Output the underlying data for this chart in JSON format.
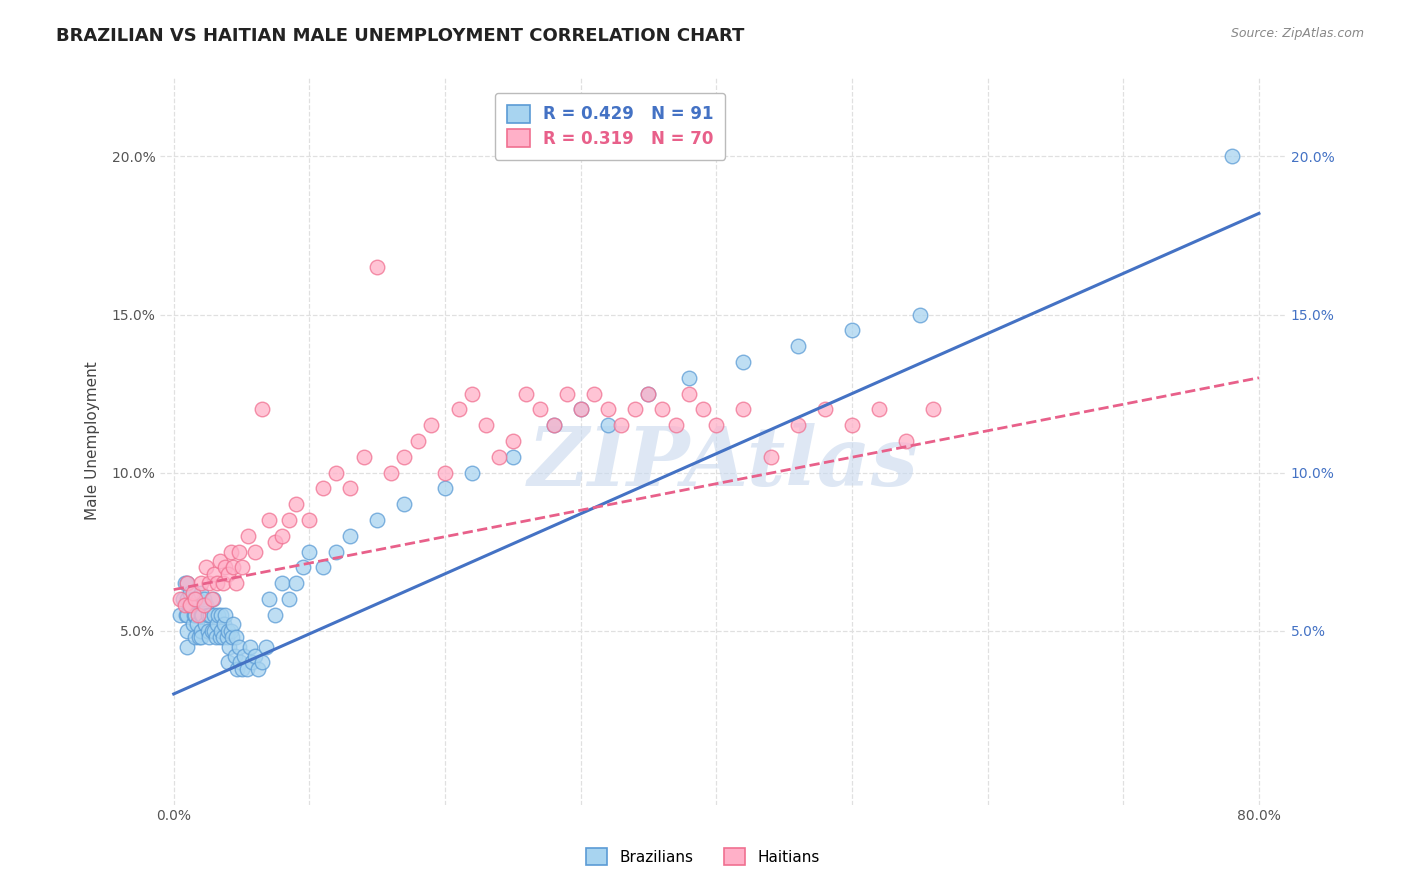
{
  "title": "BRAZILIAN VS HAITIAN MALE UNEMPLOYMENT CORRELATION CHART",
  "source_text": "Source: ZipAtlas.com",
  "ylabel": "Male Unemployment",
  "xlim": [
    -0.01,
    0.82
  ],
  "ylim": [
    -0.005,
    0.225
  ],
  "xticks": [
    0.0,
    0.1,
    0.2,
    0.3,
    0.4,
    0.5,
    0.6,
    0.7,
    0.8
  ],
  "xticklabels": [
    "0.0%",
    "",
    "",
    "",
    "",
    "",
    "",
    "",
    "80.0%"
  ],
  "yticks": [
    0.05,
    0.1,
    0.15,
    0.2
  ],
  "yticklabels_left": [
    "5.0%",
    "10.0%",
    "15.0%",
    "20.0%"
  ],
  "yticklabels_right": [
    "5.0%",
    "10.0%",
    "15.0%",
    "20.0%"
  ],
  "brazil_color": "#A8D4F0",
  "haiti_color": "#FFB0C8",
  "brazil_edge_color": "#5B9BD5",
  "haiti_edge_color": "#F07090",
  "brazil_line_color": "#4472C4",
  "haiti_line_color": "#E8608A",
  "brazil_R": 0.429,
  "brazil_N": 91,
  "haiti_R": 0.319,
  "haiti_N": 70,
  "brazil_trend_x": [
    0.0,
    0.8
  ],
  "brazil_trend_y": [
    0.03,
    0.182
  ],
  "haiti_trend_x": [
    0.0,
    0.8
  ],
  "haiti_trend_y": [
    0.063,
    0.13
  ],
  "watermark": "ZIPAtlas",
  "watermark_color": "#C8D8EE",
  "grid_color": "#E0E0E0",
  "brazil_points_x": [
    0.005,
    0.007,
    0.008,
    0.009,
    0.01,
    0.01,
    0.01,
    0.01,
    0.01,
    0.011,
    0.012,
    0.013,
    0.014,
    0.015,
    0.015,
    0.016,
    0.016,
    0.017,
    0.018,
    0.019,
    0.02,
    0.02,
    0.02,
    0.02,
    0.021,
    0.022,
    0.023,
    0.024,
    0.025,
    0.025,
    0.026,
    0.027,
    0.028,
    0.029,
    0.03,
    0.03,
    0.031,
    0.032,
    0.033,
    0.034,
    0.035,
    0.035,
    0.036,
    0.037,
    0.038,
    0.039,
    0.04,
    0.04,
    0.041,
    0.042,
    0.043,
    0.044,
    0.045,
    0.046,
    0.047,
    0.048,
    0.049,
    0.05,
    0.052,
    0.054,
    0.056,
    0.058,
    0.06,
    0.062,
    0.065,
    0.068,
    0.07,
    0.075,
    0.08,
    0.085,
    0.09,
    0.095,
    0.1,
    0.11,
    0.12,
    0.13,
    0.15,
    0.17,
    0.2,
    0.22,
    0.25,
    0.28,
    0.3,
    0.32,
    0.35,
    0.38,
    0.42,
    0.46,
    0.5,
    0.55,
    0.78
  ],
  "brazil_points_y": [
    0.055,
    0.06,
    0.065,
    0.055,
    0.06,
    0.065,
    0.055,
    0.05,
    0.045,
    0.058,
    0.062,
    0.058,
    0.052,
    0.06,
    0.055,
    0.048,
    0.055,
    0.052,
    0.06,
    0.048,
    0.055,
    0.05,
    0.062,
    0.048,
    0.055,
    0.06,
    0.052,
    0.058,
    0.05,
    0.055,
    0.048,
    0.055,
    0.05,
    0.06,
    0.05,
    0.055,
    0.048,
    0.052,
    0.055,
    0.048,
    0.05,
    0.055,
    0.048,
    0.052,
    0.055,
    0.048,
    0.05,
    0.04,
    0.045,
    0.05,
    0.048,
    0.052,
    0.042,
    0.048,
    0.038,
    0.045,
    0.04,
    0.038,
    0.042,
    0.038,
    0.045,
    0.04,
    0.042,
    0.038,
    0.04,
    0.045,
    0.06,
    0.055,
    0.065,
    0.06,
    0.065,
    0.07,
    0.075,
    0.07,
    0.075,
    0.08,
    0.085,
    0.09,
    0.095,
    0.1,
    0.105,
    0.115,
    0.12,
    0.115,
    0.125,
    0.13,
    0.135,
    0.14,
    0.145,
    0.15,
    0.2
  ],
  "haiti_points_x": [
    0.005,
    0.008,
    0.01,
    0.012,
    0.014,
    0.016,
    0.018,
    0.02,
    0.022,
    0.024,
    0.026,
    0.028,
    0.03,
    0.032,
    0.034,
    0.036,
    0.038,
    0.04,
    0.042,
    0.044,
    0.046,
    0.048,
    0.05,
    0.055,
    0.06,
    0.065,
    0.07,
    0.075,
    0.08,
    0.085,
    0.09,
    0.1,
    0.11,
    0.12,
    0.13,
    0.14,
    0.15,
    0.16,
    0.17,
    0.18,
    0.19,
    0.2,
    0.21,
    0.22,
    0.23,
    0.24,
    0.25,
    0.26,
    0.27,
    0.28,
    0.29,
    0.3,
    0.31,
    0.32,
    0.33,
    0.34,
    0.35,
    0.36,
    0.37,
    0.38,
    0.39,
    0.4,
    0.42,
    0.44,
    0.46,
    0.48,
    0.5,
    0.52,
    0.54,
    0.56
  ],
  "haiti_points_y": [
    0.06,
    0.058,
    0.065,
    0.058,
    0.062,
    0.06,
    0.055,
    0.065,
    0.058,
    0.07,
    0.065,
    0.06,
    0.068,
    0.065,
    0.072,
    0.065,
    0.07,
    0.068,
    0.075,
    0.07,
    0.065,
    0.075,
    0.07,
    0.08,
    0.075,
    0.12,
    0.085,
    0.078,
    0.08,
    0.085,
    0.09,
    0.085,
    0.095,
    0.1,
    0.095,
    0.105,
    0.165,
    0.1,
    0.105,
    0.11,
    0.115,
    0.1,
    0.12,
    0.125,
    0.115,
    0.105,
    0.11,
    0.125,
    0.12,
    0.115,
    0.125,
    0.12,
    0.125,
    0.12,
    0.115,
    0.12,
    0.125,
    0.12,
    0.115,
    0.125,
    0.12,
    0.115,
    0.12,
    0.105,
    0.115,
    0.12,
    0.115,
    0.12,
    0.11,
    0.12
  ]
}
